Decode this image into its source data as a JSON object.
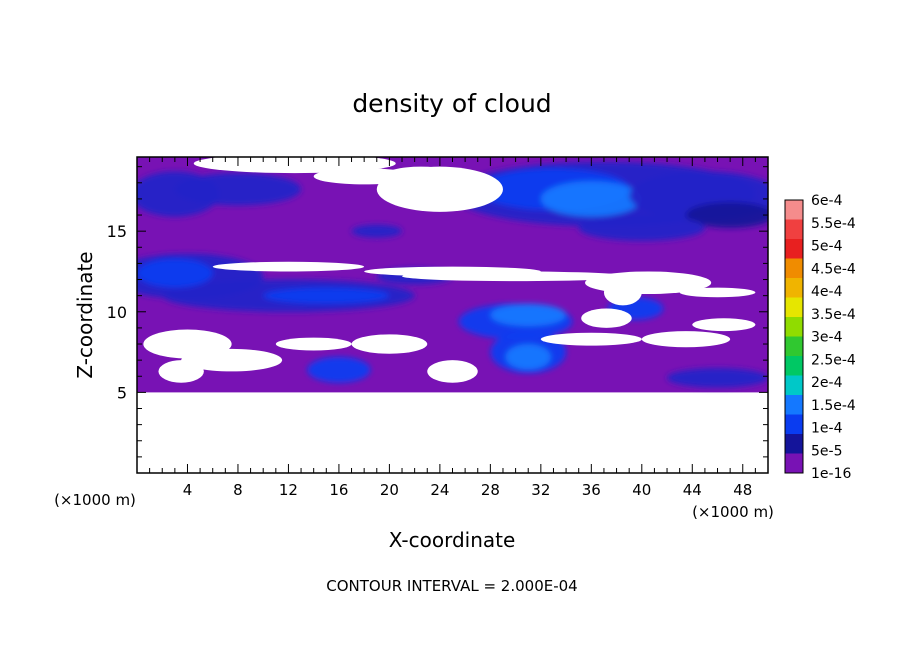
{
  "chart_data": {
    "type": "heatmap",
    "title": "density of cloud",
    "xlabel": "X-coordinate",
    "ylabel": "Z-coordinate",
    "x_unit": "(×1000 m)",
    "z_unit": "(×1000 m)",
    "xlim": [
      0,
      50
    ],
    "ylim": [
      0,
      19.6
    ],
    "x_ticks": [
      "4",
      "8",
      "12",
      "16",
      "20",
      "24",
      "28",
      "32",
      "36",
      "40",
      "44",
      "48"
    ],
    "y_ticks": [
      "5",
      "10",
      "15"
    ],
    "x_tick_values": [
      4,
      8,
      12,
      16,
      20,
      24,
      28,
      32,
      36,
      40,
      44,
      48
    ],
    "y_tick_values": [
      5,
      10,
      15
    ],
    "data_region_z": [
      5,
      19.6
    ],
    "footer": "CONTOUR INTERVAL = 2.000E-04",
    "colorbar": {
      "labels": [
        "6e-4",
        "5.5e-4",
        "5e-4",
        "4.5e-4",
        "4e-4",
        "3.5e-4",
        "3e-4",
        "2.5e-4",
        "2e-4",
        "1.5e-4",
        "1e-4",
        "5e-5",
        "1e-16"
      ],
      "colors": [
        "#f58c8c",
        "#f04040",
        "#e82020",
        "#f08c00",
        "#f0b400",
        "#e6e600",
        "#90dc00",
        "#30c830",
        "#00c864",
        "#00c8c8",
        "#1478ff",
        "#0a3cf0",
        "#14149a",
        "#7812b4"
      ]
    },
    "field_colors": {
      "background": "#7812b4",
      "low": "#2222c8",
      "mid": "#0a3cf0",
      "high": "#1478ff",
      "dark": "#14149a",
      "clear": "#ffffff"
    }
  }
}
